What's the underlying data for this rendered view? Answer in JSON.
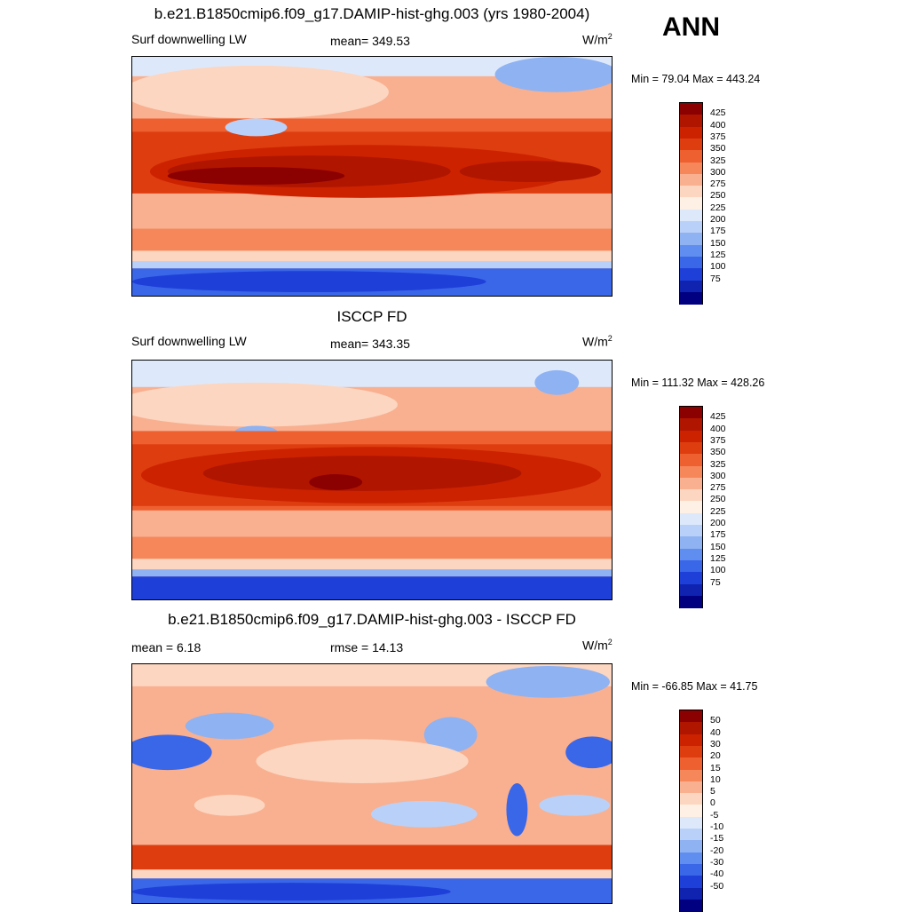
{
  "season": "ANN",
  "panels": [
    {
      "title": "b.e21.B1850cmip6.f09_g17.DAMIP-hist-ghg.003 (yrs 1980-2004)",
      "left_label": "Surf downwelling LW",
      "center_label": "mean= 349.53",
      "units": "W/m",
      "units_sup": "2",
      "minmax": "Min =  79.04 Max = 443.24",
      "colorbar": [
        "425",
        "400",
        "375",
        "350",
        "325",
        "300",
        "275",
        "250",
        "225",
        "200",
        "175",
        "150",
        "125",
        "100",
        "75"
      ],
      "colors": [
        "#8b0000",
        "#b01500",
        "#cc2200",
        "#de3d10",
        "#ee6030",
        "#f5875a",
        "#f8b090",
        "#fcd6c0",
        "#fef0e4",
        "#dde9fb",
        "#b9d1f8",
        "#8fb2f2",
        "#5f8ef0",
        "#3a66e8",
        "#1e3fd8",
        "#0f22b0",
        "#000080"
      ]
    },
    {
      "title": "ISCCP FD",
      "left_label": "Surf downwelling LW",
      "center_label": "mean= 343.35",
      "units": "W/m",
      "units_sup": "2",
      "minmax": "Min = 111.32 Max = 428.26",
      "colorbar": [
        "425",
        "400",
        "375",
        "350",
        "325",
        "300",
        "275",
        "250",
        "225",
        "200",
        "175",
        "150",
        "125",
        "100",
        "75"
      ],
      "colors": [
        "#8b0000",
        "#b01500",
        "#cc2200",
        "#de3d10",
        "#ee6030",
        "#f5875a",
        "#f8b090",
        "#fcd6c0",
        "#fef0e4",
        "#dde9fb",
        "#b9d1f8",
        "#8fb2f2",
        "#5f8ef0",
        "#3a66e8",
        "#1e3fd8",
        "#0f22b0",
        "#000080"
      ]
    },
    {
      "title": "b.e21.B1850cmip6.f09_g17.DAMIP-hist-ghg.003 - ISCCP FD",
      "left_label": "mean =   6.18",
      "center_label": "rmse =  14.13",
      "units": "W/m",
      "units_sup": "2",
      "minmax": "Min = -66.85 Max =  41.75",
      "colorbar": [
        "50",
        "40",
        "30",
        "20",
        "15",
        "10",
        "5",
        "0",
        "-5",
        "-10",
        "-15",
        "-20",
        "-30",
        "-40",
        "-50"
      ],
      "colors": [
        "#8b0000",
        "#b01500",
        "#cc2200",
        "#de3d10",
        "#ee6030",
        "#f5875a",
        "#f8b090",
        "#fcd6c0",
        "#fef0e4",
        "#dde9fb",
        "#b9d1f8",
        "#8fb2f2",
        "#5f8ef0",
        "#3a66e8",
        "#1e3fd8",
        "#0f22b0",
        "#000080"
      ]
    }
  ]
}
